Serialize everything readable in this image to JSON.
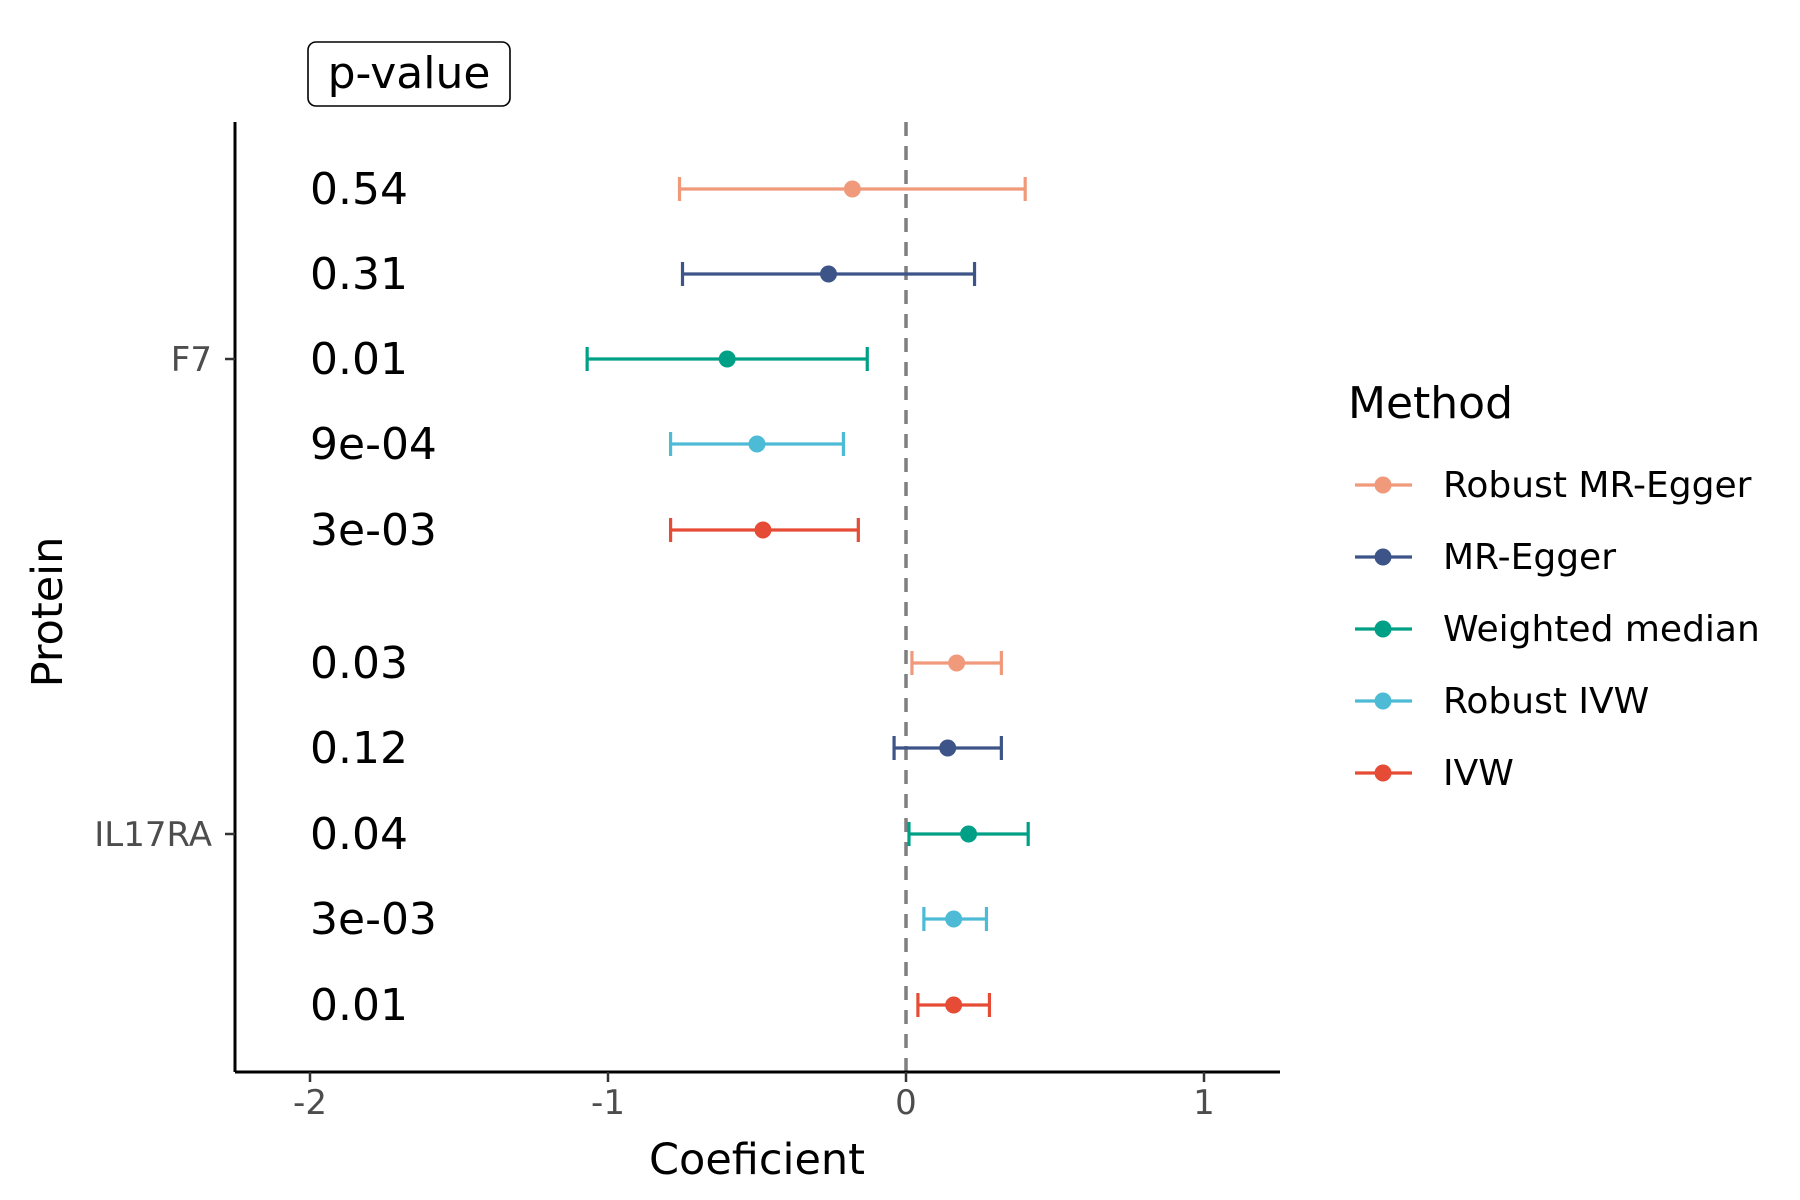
{
  "chart_data": {
    "type": "forest",
    "xlabel": "Coeficient",
    "ylabel": "Protein",
    "xlim": [
      -2.25,
      1.25
    ],
    "xticks": [
      -2,
      -1,
      0,
      1
    ],
    "xtick_labels": [
      "-2",
      "-1",
      "0",
      "1"
    ],
    "reference_line_x": 0,
    "pvalue_header": "p-value",
    "legend": {
      "title": "Method",
      "placement": "right",
      "items": [
        {
          "label": "Robust MR-Egger",
          "color": "#F0997B"
        },
        {
          "label": "MR-Egger",
          "color": "#3C5488"
        },
        {
          "label": "Weighted median",
          "color": "#00A087"
        },
        {
          "label": "Robust IVW",
          "color": "#4DBBD5"
        },
        {
          "label": "IVW",
          "color": "#E64B35"
        }
      ]
    },
    "groups": [
      {
        "protein": "F7",
        "rows": [
          {
            "method": "Robust MR-Egger",
            "estimate": -0.18,
            "lower": -0.76,
            "upper": 0.4,
            "p_value": "0.54"
          },
          {
            "method": "MR-Egger",
            "estimate": -0.26,
            "lower": -0.75,
            "upper": 0.23,
            "p_value": "0.31"
          },
          {
            "method": "Weighted median",
            "estimate": -0.6,
            "lower": -1.07,
            "upper": -0.13,
            "p_value": "0.01"
          },
          {
            "method": "Robust IVW",
            "estimate": -0.5,
            "lower": -0.79,
            "upper": -0.21,
            "p_value": "9e-04"
          },
          {
            "method": "IVW",
            "estimate": -0.48,
            "lower": -0.79,
            "upper": -0.16,
            "p_value": "3e-03"
          }
        ]
      },
      {
        "protein": "IL17RA",
        "rows": [
          {
            "method": "Robust MR-Egger",
            "estimate": 0.17,
            "lower": 0.02,
            "upper": 0.32,
            "p_value": "0.03"
          },
          {
            "method": "MR-Egger",
            "estimate": 0.14,
            "lower": -0.04,
            "upper": 0.32,
            "p_value": "0.12"
          },
          {
            "method": "Weighted median",
            "estimate": 0.21,
            "lower": 0.01,
            "upper": 0.41,
            "p_value": "0.04"
          },
          {
            "method": "Robust IVW",
            "estimate": 0.16,
            "lower": 0.06,
            "upper": 0.27,
            "p_value": "3e-03"
          },
          {
            "method": "IVW",
            "estimate": 0.16,
            "lower": 0.04,
            "upper": 0.28,
            "p_value": "0.01"
          }
        ]
      }
    ]
  }
}
